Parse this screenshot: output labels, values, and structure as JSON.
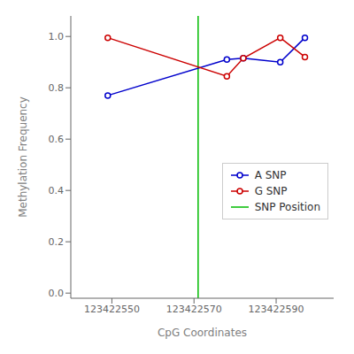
{
  "chart_data": {
    "type": "line",
    "xlabel": "CpG Coordinates",
    "ylabel": "Methylation Frequency",
    "x": [
      123422549,
      123422578,
      123422582,
      123422591,
      123422597
    ],
    "series": [
      {
        "name": "A SNP",
        "color": "#0000CC",
        "marker": "circle",
        "values": [
          0.77,
          0.91,
          0.915,
          0.9,
          0.995
        ]
      },
      {
        "name": "G SNP",
        "color": "#CC0000",
        "marker": "circle",
        "values": [
          0.995,
          0.845,
          0.915,
          0.995,
          0.92
        ]
      }
    ],
    "vline": {
      "name": "SNP Position",
      "x": 123422571,
      "color": "#00BB00"
    },
    "xlim": [
      123422540,
      123422604
    ],
    "ylim": [
      -0.02,
      1.08
    ],
    "xticks": [
      123422550,
      123422570,
      123422590
    ],
    "yticks": [
      {
        "value": 0,
        "label": "0.0"
      },
      0.2,
      0.4,
      0.6,
      0.8,
      {
        "value": 1,
        "label": "1.0"
      }
    ],
    "grid": false,
    "legend": "lower right"
  }
}
